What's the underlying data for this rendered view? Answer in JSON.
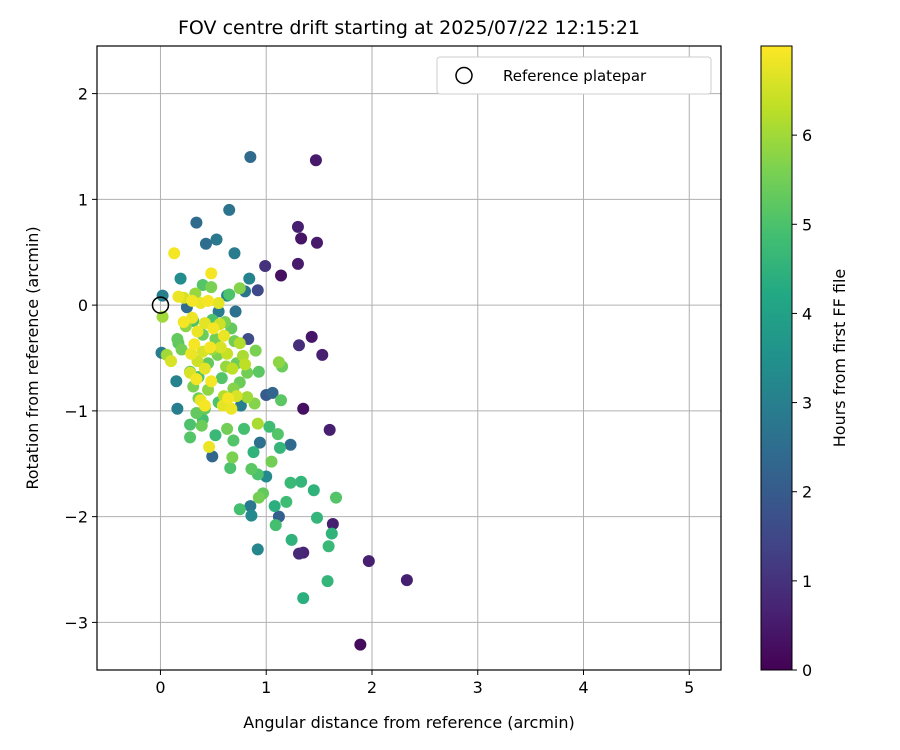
{
  "chart_data": {
    "type": "scatter",
    "title": "FOV centre drift starting at 2025/07/22 12:15:21",
    "xlabel": "Angular distance from reference (arcmin)",
    "ylabel": "Rotation from reference (arcmin)",
    "xlim": [
      -0.6,
      5.3
    ],
    "ylim": [
      -3.45,
      2.45
    ],
    "xticks": [
      0,
      1,
      2,
      3,
      4,
      5
    ],
    "yticks": [
      -3,
      -2,
      -1,
      0,
      1,
      2
    ],
    "xtick_labels": [
      "0",
      "1",
      "2",
      "3",
      "4",
      "5"
    ],
    "ytick_labels": [
      "−3",
      "−2",
      "−1",
      "0",
      "1",
      "2"
    ],
    "grid": true,
    "colormap": "viridis",
    "colorbar": {
      "label": "Hours from first FF file",
      "range": [
        0,
        7
      ],
      "ticks": [
        0,
        1,
        2,
        3,
        4,
        5,
        6
      ],
      "tick_labels": [
        "0",
        "1",
        "2",
        "3",
        "4",
        "5",
        "6"
      ]
    },
    "legend": {
      "placement": "top-right",
      "entries": [
        {
          "label": "Reference platepar",
          "marker": "open-circle"
        }
      ]
    },
    "reference_point": {
      "x": 0,
      "y": 0
    },
    "points": [
      {
        "x": 1.89,
        "y": -3.21,
        "c": 0.2
      },
      {
        "x": 1.47,
        "y": 1.37,
        "c": 0.5
      },
      {
        "x": 1.33,
        "y": 0.63,
        "c": 0.4
      },
      {
        "x": 1.3,
        "y": 0.74,
        "c": 0.6
      },
      {
        "x": 1.48,
        "y": 0.59,
        "c": 0.5
      },
      {
        "x": 1.3,
        "y": 0.39,
        "c": 0.5
      },
      {
        "x": 1.14,
        "y": 0.28,
        "c": 0.3
      },
      {
        "x": 0.99,
        "y": 0.37,
        "c": 1.0
      },
      {
        "x": 1.43,
        "y": -0.3,
        "c": 0.4
      },
      {
        "x": 1.31,
        "y": -0.38,
        "c": 0.9
      },
      {
        "x": 1.53,
        "y": -0.47,
        "c": 0.6
      },
      {
        "x": 1.35,
        "y": -0.98,
        "c": 0.3
      },
      {
        "x": 1.6,
        "y": -1.18,
        "c": 0.6
      },
      {
        "x": 1.63,
        "y": -2.07,
        "c": 0.6
      },
      {
        "x": 1.97,
        "y": -2.42,
        "c": 0.6
      },
      {
        "x": 2.33,
        "y": -2.6,
        "c": 0.6
      },
      {
        "x": 1.31,
        "y": -2.35,
        "c": 0.8
      },
      {
        "x": 1.35,
        "y": -2.34,
        "c": 0.7
      },
      {
        "x": 0.85,
        "y": 1.4,
        "c": 2.4
      },
      {
        "x": 0.65,
        "y": 0.9,
        "c": 2.7
      },
      {
        "x": 0.34,
        "y": 0.78,
        "c": 2.4
      },
      {
        "x": 0.53,
        "y": 0.62,
        "c": 2.8
      },
      {
        "x": 0.43,
        "y": 0.58,
        "c": 2.5
      },
      {
        "x": 0.7,
        "y": 0.49,
        "c": 2.9
      },
      {
        "x": 0.84,
        "y": 0.25,
        "c": 3.1
      },
      {
        "x": 0.19,
        "y": 0.25,
        "c": 3.4
      },
      {
        "x": 0.92,
        "y": 0.14,
        "c": 1.5
      },
      {
        "x": 0.02,
        "y": 0.09,
        "c": 3.0
      },
      {
        "x": 0.63,
        "y": 0.09,
        "c": 3.2
      },
      {
        "x": 0.8,
        "y": 0.13,
        "c": 2.7
      },
      {
        "x": 0.25,
        "y": -0.02,
        "c": 2.5
      },
      {
        "x": 0.55,
        "y": -0.06,
        "c": 2.9
      },
      {
        "x": 0.71,
        "y": -0.06,
        "c": 2.6
      },
      {
        "x": 0.83,
        "y": -0.32,
        "c": 1.6
      },
      {
        "x": 0.01,
        "y": -0.45,
        "c": 2.9
      },
      {
        "x": 0.15,
        "y": -0.72,
        "c": 3.1
      },
      {
        "x": 0.16,
        "y": -0.98,
        "c": 3.0
      },
      {
        "x": 1.0,
        "y": -0.85,
        "c": 2.0
      },
      {
        "x": 1.06,
        "y": -0.83,
        "c": 2.3
      },
      {
        "x": 0.76,
        "y": -0.95,
        "c": 3.0
      },
      {
        "x": 0.94,
        "y": -1.3,
        "c": 2.6
      },
      {
        "x": 1.0,
        "y": -1.62,
        "c": 3.3
      },
      {
        "x": 1.23,
        "y": -1.32,
        "c": 2.4
      },
      {
        "x": 1.12,
        "y": -2.0,
        "c": 2.1
      },
      {
        "x": 0.49,
        "y": -1.43,
        "c": 2.3
      },
      {
        "x": 0.85,
        "y": -1.9,
        "c": 2.8
      },
      {
        "x": 0.86,
        "y": -1.99,
        "c": 3.3
      },
      {
        "x": 0.92,
        "y": -2.31,
        "c": 3.2
      },
      {
        "x": 1.35,
        "y": -2.77,
        "c": 4.4
      },
      {
        "x": 1.58,
        "y": -2.61,
        "c": 4.6
      },
      {
        "x": 1.59,
        "y": -2.28,
        "c": 4.7
      },
      {
        "x": 1.62,
        "y": -2.16,
        "c": 4.5
      },
      {
        "x": 1.24,
        "y": -2.22,
        "c": 4.5
      },
      {
        "x": 1.09,
        "y": -2.08,
        "c": 4.9
      },
      {
        "x": 1.48,
        "y": -2.01,
        "c": 4.6
      },
      {
        "x": 1.66,
        "y": -1.82,
        "c": 5.1
      },
      {
        "x": 1.45,
        "y": -1.75,
        "c": 4.5
      },
      {
        "x": 1.33,
        "y": -1.67,
        "c": 4.6
      },
      {
        "x": 1.23,
        "y": -1.68,
        "c": 4.7
      },
      {
        "x": 1.19,
        "y": -1.86,
        "c": 4.8
      },
      {
        "x": 1.08,
        "y": -1.9,
        "c": 4.4
      },
      {
        "x": 0.97,
        "y": -1.78,
        "c": 5.3
      },
      {
        "x": 0.93,
        "y": -1.82,
        "c": 5.5
      },
      {
        "x": 0.75,
        "y": -1.93,
        "c": 4.9
      },
      {
        "x": 0.86,
        "y": -1.55,
        "c": 5.2
      },
      {
        "x": 0.92,
        "y": -1.6,
        "c": 5.0
      },
      {
        "x": 1.05,
        "y": -1.48,
        "c": 5.5
      },
      {
        "x": 1.13,
        "y": -1.35,
        "c": 4.6
      },
      {
        "x": 0.88,
        "y": -1.39,
        "c": 4.5
      },
      {
        "x": 0.66,
        "y": -1.54,
        "c": 5.0
      },
      {
        "x": 0.68,
        "y": -1.44,
        "c": 5.6
      },
      {
        "x": 0.69,
        "y": -1.28,
        "c": 5.1
      },
      {
        "x": 0.52,
        "y": -1.23,
        "c": 4.7
      },
      {
        "x": 0.28,
        "y": -1.25,
        "c": 5.1
      },
      {
        "x": 0.28,
        "y": -1.13,
        "c": 5.0
      },
      {
        "x": 0.4,
        "y": -1.08,
        "c": 4.9
      },
      {
        "x": 0.34,
        "y": -1.02,
        "c": 5.3
      },
      {
        "x": 0.63,
        "y": -1.17,
        "c": 5.5
      },
      {
        "x": 0.79,
        "y": -1.17,
        "c": 4.9
      },
      {
        "x": 1.03,
        "y": -1.15,
        "c": 4.8
      },
      {
        "x": 1.11,
        "y": -1.22,
        "c": 5.1
      },
      {
        "x": 1.14,
        "y": -0.9,
        "c": 5.2
      },
      {
        "x": 1.15,
        "y": -0.58,
        "c": 5.4
      },
      {
        "x": 1.12,
        "y": -0.54,
        "c": 5.8
      },
      {
        "x": 0.92,
        "y": -1.12,
        "c": 6.1
      },
      {
        "x": 0.89,
        "y": -0.93,
        "c": 5.7
      },
      {
        "x": 0.82,
        "y": -0.64,
        "c": 5.5
      },
      {
        "x": 0.9,
        "y": -0.43,
        "c": 5.6
      },
      {
        "x": 0.93,
        "y": -0.63,
        "c": 5.2
      },
      {
        "x": 0.82,
        "y": -0.87,
        "c": 6.0
      },
      {
        "x": 0.75,
        "y": -0.73,
        "c": 5.4
      },
      {
        "x": 0.69,
        "y": -0.79,
        "c": 5.7
      },
      {
        "x": 0.6,
        "y": -0.86,
        "c": 6.2
      },
      {
        "x": 0.55,
        "y": -0.92,
        "c": 5.0
      },
      {
        "x": 0.45,
        "y": -0.8,
        "c": 5.8
      },
      {
        "x": 0.36,
        "y": -0.88,
        "c": 5.5
      },
      {
        "x": 0.31,
        "y": -0.77,
        "c": 5.6
      },
      {
        "x": 0.45,
        "y": -0.55,
        "c": 5.3
      },
      {
        "x": 0.54,
        "y": -0.47,
        "c": 5.6
      },
      {
        "x": 0.62,
        "y": -0.58,
        "c": 5.9
      },
      {
        "x": 0.72,
        "y": -0.55,
        "c": 5.4
      },
      {
        "x": 0.78,
        "y": -0.48,
        "c": 6.1
      },
      {
        "x": 0.7,
        "y": -0.34,
        "c": 5.5
      },
      {
        "x": 0.67,
        "y": -0.22,
        "c": 5.3
      },
      {
        "x": 0.61,
        "y": -0.16,
        "c": 5.6
      },
      {
        "x": 0.49,
        "y": -0.14,
        "c": 5.0
      },
      {
        "x": 0.4,
        "y": -0.28,
        "c": 5.4
      },
      {
        "x": 0.31,
        "y": -0.15,
        "c": 5.0
      },
      {
        "x": 0.16,
        "y": -0.32,
        "c": 5.3
      },
      {
        "x": 0.2,
        "y": -0.42,
        "c": 5.5
      },
      {
        "x": 0.06,
        "y": -0.47,
        "c": 6.0
      },
      {
        "x": 0.02,
        "y": -0.11,
        "c": 6.0
      },
      {
        "x": 0.33,
        "y": 0.11,
        "c": 5.9
      },
      {
        "x": 0.4,
        "y": 0.19,
        "c": 5.1
      },
      {
        "x": 0.48,
        "y": 0.17,
        "c": 5.6
      },
      {
        "x": 0.65,
        "y": 0.1,
        "c": 5.0
      },
      {
        "x": 0.75,
        "y": 0.16,
        "c": 5.7
      },
      {
        "x": 0.17,
        "y": -0.36,
        "c": 5.2
      },
      {
        "x": 0.24,
        "y": -0.2,
        "c": 5.8
      },
      {
        "x": 0.28,
        "y": -0.63,
        "c": 5.2
      },
      {
        "x": 0.36,
        "y": -0.68,
        "c": 5.0
      },
      {
        "x": 0.52,
        "y": -0.32,
        "c": 5.5
      },
      {
        "x": 0.58,
        "y": -0.69,
        "c": 5.1
      },
      {
        "x": 0.42,
        "y": -0.98,
        "c": 5.3
      },
      {
        "x": 0.39,
        "y": -1.14,
        "c": 5.4
      },
      {
        "x": 0.49,
        "y": -0.42,
        "c": 5.9
      },
      {
        "x": 0.13,
        "y": 0.49,
        "c": 6.9
      },
      {
        "x": 0.48,
        "y": 0.3,
        "c": 6.9
      },
      {
        "x": 0.17,
        "y": 0.08,
        "c": 6.8
      },
      {
        "x": 0.22,
        "y": 0.07,
        "c": 6.6
      },
      {
        "x": 0.3,
        "y": 0.04,
        "c": 6.9
      },
      {
        "x": 0.38,
        "y": 0.02,
        "c": 6.8
      },
      {
        "x": 0.45,
        "y": 0.04,
        "c": 6.9
      },
      {
        "x": 0.55,
        "y": 0.02,
        "c": 6.7
      },
      {
        "x": 0.1,
        "y": -0.53,
        "c": 6.6
      },
      {
        "x": 0.22,
        "y": -0.16,
        "c": 6.9
      },
      {
        "x": 0.3,
        "y": -0.12,
        "c": 6.8
      },
      {
        "x": 0.35,
        "y": -0.25,
        "c": 6.8
      },
      {
        "x": 0.42,
        "y": -0.17,
        "c": 6.7
      },
      {
        "x": 0.5,
        "y": -0.22,
        "c": 6.9
      },
      {
        "x": 0.56,
        "y": -0.18,
        "c": 6.5
      },
      {
        "x": 0.6,
        "y": -0.29,
        "c": 6.8
      },
      {
        "x": 0.32,
        "y": -0.37,
        "c": 6.9
      },
      {
        "x": 0.4,
        "y": -0.44,
        "c": 6.6
      },
      {
        "x": 0.47,
        "y": -0.4,
        "c": 6.9
      },
      {
        "x": 0.29,
        "y": -0.46,
        "c": 6.8
      },
      {
        "x": 0.35,
        "y": -0.53,
        "c": 6.5
      },
      {
        "x": 0.42,
        "y": -0.6,
        "c": 6.7
      },
      {
        "x": 0.28,
        "y": -0.64,
        "c": 6.6
      },
      {
        "x": 0.34,
        "y": -0.7,
        "c": 6.9
      },
      {
        "x": 0.48,
        "y": -0.72,
        "c": 6.9
      },
      {
        "x": 0.38,
        "y": -0.9,
        "c": 6.8
      },
      {
        "x": 0.42,
        "y": -0.95,
        "c": 6.9
      },
      {
        "x": 0.59,
        "y": -0.95,
        "c": 6.7
      },
      {
        "x": 0.64,
        "y": -0.88,
        "c": 6.9
      },
      {
        "x": 0.67,
        "y": -0.98,
        "c": 6.8
      },
      {
        "x": 0.72,
        "y": -0.86,
        "c": 6.6
      },
      {
        "x": 0.46,
        "y": -1.34,
        "c": 6.8
      },
      {
        "x": 0.57,
        "y": -0.4,
        "c": 6.6
      },
      {
        "x": 0.63,
        "y": -0.46,
        "c": 6.4
      },
      {
        "x": 0.68,
        "y": -0.6,
        "c": 6.3
      },
      {
        "x": 0.75,
        "y": -0.36,
        "c": 6.2
      },
      {
        "x": 0.8,
        "y": -0.56,
        "c": 6.3
      }
    ]
  }
}
